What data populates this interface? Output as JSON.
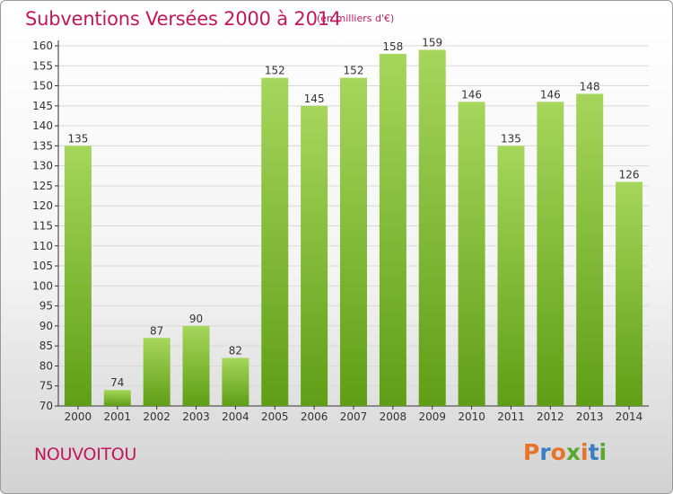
{
  "header": {
    "title": "Subventions Versées 2000 à 2014",
    "unit": "(en milliers d'€)"
  },
  "footer": {
    "commune": "NOUVOITOU",
    "logo_text": "Proxiti",
    "logo_colors": [
      "#e8732a",
      "#3a7fc1",
      "#e8732a",
      "#5aa832",
      "#e8732a",
      "#3a7fc1",
      "#5aa832"
    ]
  },
  "colors": {
    "bar_light": "#a6d65c",
    "bar_dark": "#5f9e16",
    "title": "#c2185b",
    "axis": "#333333",
    "grid": "#d9d9d9"
  },
  "chart_data": {
    "type": "bar",
    "title": "Subventions Versées 2000 à 2014",
    "categories": [
      "2000",
      "2001",
      "2002",
      "2003",
      "2004",
      "2005",
      "2006",
      "2007",
      "2008",
      "2009",
      "2010",
      "2011",
      "2012",
      "2013",
      "2014"
    ],
    "values": [
      135,
      74,
      87,
      90,
      82,
      152,
      145,
      152,
      158,
      159,
      146,
      135,
      146,
      148,
      126
    ],
    "ylim": [
      70,
      160
    ],
    "yticks": [
      70,
      75,
      80,
      85,
      90,
      95,
      100,
      105,
      110,
      115,
      120,
      125,
      130,
      135,
      140,
      145,
      150,
      155,
      160
    ],
    "grid": true,
    "data_labels": true
  }
}
